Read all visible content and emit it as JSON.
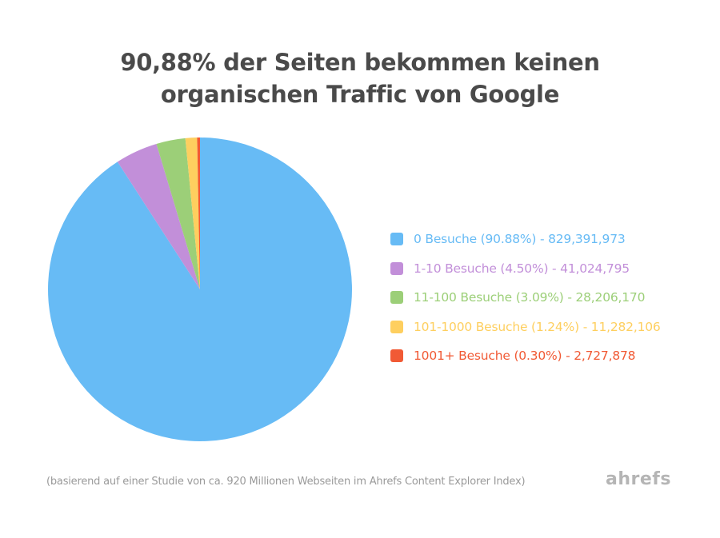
{
  "title_line1": "90,88% der Seiten bekommen keinen",
  "title_line2": "organischen Traffic von Google",
  "footnote": "(basierend auf einer Studie von ca. 920 Millionen Webseiten im Ahrefs Content Explorer Index)",
  "brand": "ahrefs",
  "chart_data": {
    "type": "pie",
    "title": "90,88% der Seiten bekommen keinen organischen Traffic von Google",
    "start": "top",
    "direction": "clockwise",
    "legend_position": "right",
    "slices": [
      {
        "name": "0 Besuche",
        "percent": 90.88,
        "count": 829391973,
        "color": "#67bbf5",
        "label": "0 Besuche (90.88%) - 829,391,973"
      },
      {
        "name": "1-10 Besuche",
        "percent": 4.5,
        "count": 41024795,
        "color": "#c28fd9",
        "label": "1-10 Besuche (4.50%) - 41,024,795"
      },
      {
        "name": "11-100 Besuche",
        "percent": 3.09,
        "count": 28206170,
        "color": "#9ccf78",
        "label": "11-100 Besuche (3.09%) - 28,206,170"
      },
      {
        "name": "101-1000 Besuche",
        "percent": 1.24,
        "count": 11282106,
        "color": "#fecf5f",
        "label": "101-1000 Besuche (1.24%) - 11,282,106"
      },
      {
        "name": "1001+ Besuche",
        "percent": 0.3,
        "count": 2727878,
        "color": "#f15a35",
        "label": "1001+ Besuche (0.30%) - 2,727,878"
      }
    ]
  }
}
